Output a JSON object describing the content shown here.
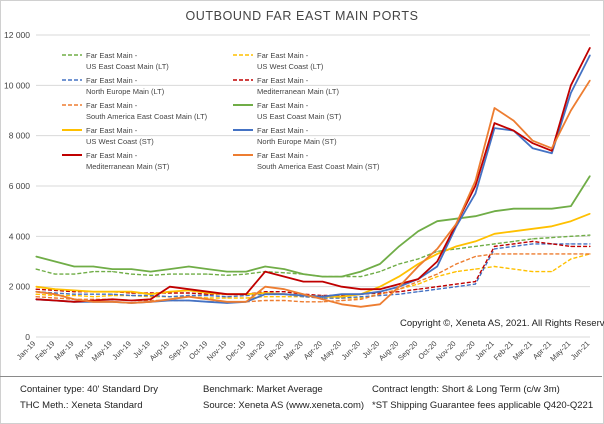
{
  "page": {
    "title": "OUTBOUND FAR EAST MAIN PORTS"
  },
  "chart_data": {
    "type": "line",
    "title": "OUTBOUND FAR EAST MAIN PORTS",
    "xlabel": "",
    "ylabel": "",
    "ylim": [
      0,
      12000
    ],
    "yticks": [
      0,
      2000,
      4000,
      6000,
      8000,
      10000,
      12000
    ],
    "ytick_labels": [
      "0",
      "2 000",
      "4 000",
      "6 000",
      "8 000",
      "10 000",
      "12 000"
    ],
    "x": [
      "Jan-19",
      "Feb-19",
      "Mar-19",
      "Apr-19",
      "May-19",
      "Jun-19",
      "Jul-19",
      "Aug-19",
      "Sep-19",
      "Oct-19",
      "Nov-19",
      "Dec-19",
      "Jan-20",
      "Feb-20",
      "Mar-20",
      "Apr-20",
      "May-20",
      "Jun-20",
      "Jul-20",
      "Aug-20",
      "Sep-20",
      "Oct-20",
      "Nov-20",
      "Dec-20",
      "Jan-21",
      "Feb-21",
      "Mar-21",
      "Apr-21",
      "May-21",
      "Jun-21"
    ],
    "grid": true,
    "legend": "upper-left",
    "series": [
      {
        "name": "Far East Main - US East Coast Main (LT)",
        "color": "#70ad47",
        "dash": true,
        "values": [
          2700,
          2500,
          2500,
          2600,
          2600,
          2500,
          2450,
          2500,
          2500,
          2500,
          2450,
          2500,
          2600,
          2550,
          2500,
          2400,
          2400,
          2400,
          2600,
          2900,
          3100,
          3400,
          3500,
          3600,
          3700,
          3800,
          3900,
          3950,
          4000,
          4050
        ]
      },
      {
        "name": "Far East Main - US West Coast (LT)",
        "color": "#ffc000",
        "dash": true,
        "values": [
          1700,
          1650,
          1650,
          1600,
          1650,
          1650,
          1600,
          1600,
          1600,
          1550,
          1550,
          1550,
          1600,
          1600,
          1600,
          1550,
          1550,
          1550,
          1700,
          1900,
          2100,
          2400,
          2600,
          2700,
          2800,
          2700,
          2600,
          2600,
          3100,
          3300
        ]
      },
      {
        "name": "Far East Main - North Europe Main (LT)",
        "color": "#4472c4",
        "dash": true,
        "values": [
          1800,
          1750,
          1700,
          1700,
          1700,
          1650,
          1650,
          1600,
          1650,
          1650,
          1600,
          1650,
          1700,
          1700,
          1600,
          1550,
          1550,
          1600,
          1650,
          1700,
          1800,
          1900,
          2000,
          2100,
          3500,
          3600,
          3700,
          3700,
          3700,
          3700
        ]
      },
      {
        "name": "Far East Main - Mediterranean Main (LT)",
        "color": "#c00000",
        "dash": true,
        "values": [
          1900,
          1850,
          1800,
          1800,
          1800,
          1750,
          1750,
          1750,
          1750,
          1700,
          1700,
          1700,
          1800,
          1800,
          1700,
          1650,
          1650,
          1700,
          1750,
          1800,
          1900,
          2000,
          2100,
          2200,
          3600,
          3700,
          3800,
          3700,
          3600,
          3600
        ]
      },
      {
        "name": "Far East Main - South America East Coast Main (LT)",
        "color": "#ed7d31",
        "dash": true,
        "values": [
          1600,
          1550,
          1500,
          1500,
          1500,
          1450,
          1450,
          1450,
          1450,
          1400,
          1400,
          1400,
          1450,
          1450,
          1400,
          1400,
          1450,
          1500,
          1700,
          1900,
          2200,
          2500,
          2900,
          3200,
          3300,
          3300,
          3300,
          3300,
          3300,
          3300
        ]
      },
      {
        "name": "Far East Main - US East Coast Main (ST)",
        "color": "#70ad47",
        "dash": false,
        "values": [
          3200,
          3000,
          2800,
          2800,
          2700,
          2700,
          2600,
          2700,
          2800,
          2700,
          2600,
          2600,
          2800,
          2700,
          2500,
          2400,
          2400,
          2600,
          2900,
          3600,
          4200,
          4600,
          4700,
          4800,
          5000,
          5100,
          5100,
          5100,
          5200,
          6400
        ]
      },
      {
        "name": "Far East Main - US West Coast (ST)",
        "color": "#ffc000",
        "dash": false,
        "values": [
          2000,
          1900,
          1850,
          1800,
          1800,
          1800,
          1700,
          1800,
          1850,
          1750,
          1700,
          1700,
          1750,
          1700,
          1650,
          1600,
          1600,
          1700,
          2000,
          2400,
          2900,
          3300,
          3600,
          3800,
          4100,
          4200,
          4300,
          4400,
          4600,
          4900
        ]
      },
      {
        "name": "Far East Main - North Europe Main (ST)",
        "color": "#4472c4",
        "dash": false,
        "values": [
          1500,
          1450,
          1400,
          1400,
          1400,
          1350,
          1400,
          1450,
          1450,
          1400,
          1350,
          1400,
          1700,
          1700,
          1650,
          1600,
          1700,
          1700,
          1800,
          2000,
          2300,
          2800,
          4400,
          5700,
          8300,
          8200,
          7500,
          7300,
          9700,
          11200
        ]
      },
      {
        "name": "Far East Main - Mediterranean Main (ST)",
        "color": "#c00000",
        "dash": false,
        "values": [
          1500,
          1450,
          1400,
          1450,
          1500,
          1450,
          1500,
          2000,
          1900,
          1800,
          1700,
          1700,
          2600,
          2400,
          2200,
          2200,
          2000,
          1900,
          1900,
          2100,
          2300,
          3000,
          4500,
          6000,
          8500,
          8200,
          7700,
          7400,
          10000,
          11500
        ]
      },
      {
        "name": "Far East Main - South America East Coast Main (ST)",
        "color": "#ed7d31",
        "dash": false,
        "values": [
          1800,
          1700,
          1500,
          1400,
          1400,
          1350,
          1400,
          1500,
          1600,
          1500,
          1400,
          1400,
          2000,
          1900,
          1700,
          1500,
          1300,
          1200,
          1300,
          2000,
          2800,
          3500,
          4500,
          6200,
          9100,
          8600,
          7800,
          7500,
          9000,
          10200
        ]
      }
    ]
  },
  "legend_items": [
    {
      "l1": "Far East Main -",
      "l2": "US East Coast Main (LT)",
      "color": "#70ad47",
      "dash": true
    },
    {
      "l1": "Far East Main -",
      "l2": "US West Coast (LT)",
      "color": "#ffc000",
      "dash": true
    },
    {
      "l1": "Far East Main -",
      "l2": "North Europe Main (LT)",
      "color": "#4472c4",
      "dash": true
    },
    {
      "l1": "Far East Main -",
      "l2": "Mediterranean Main (LT)",
      "color": "#c00000",
      "dash": true
    },
    {
      "l1": "Far East Main -",
      "l2": "South America East Coast Main (LT)",
      "color": "#ed7d31",
      "dash": true
    },
    {
      "l1": "Far East Main -",
      "l2": "US East Coast Main (ST)",
      "color": "#70ad47",
      "dash": false
    },
    {
      "l1": "Far East Main -",
      "l2": "US West Coast (ST)",
      "color": "#ffc000",
      "dash": false
    },
    {
      "l1": "Far East Main -",
      "l2": "North Europe Main (ST)",
      "color": "#4472c4",
      "dash": false
    },
    {
      "l1": "Far East Main -",
      "l2": "Mediterranean Main (ST)",
      "color": "#c00000",
      "dash": false
    },
    {
      "l1": "Far East Main -",
      "l2": "South America East Coast Main (ST)",
      "color": "#ed7d31",
      "dash": false
    }
  ],
  "copyright": "Copyright ©, Xeneta AS, 2021. All Rights Reserved.",
  "footer": {
    "container_type": "Container type: 40' Standard Dry",
    "benchmark": "Benchmark: Market Average",
    "contract_length": "Contract length: Short & Long Term (c/w 3m)",
    "thc": "THC Meth.: Xeneta Standard",
    "source": "Source: Xeneta AS (www.xeneta.com)",
    "note": "*ST Shipping Guarantee fees applicable Q420-Q221"
  }
}
